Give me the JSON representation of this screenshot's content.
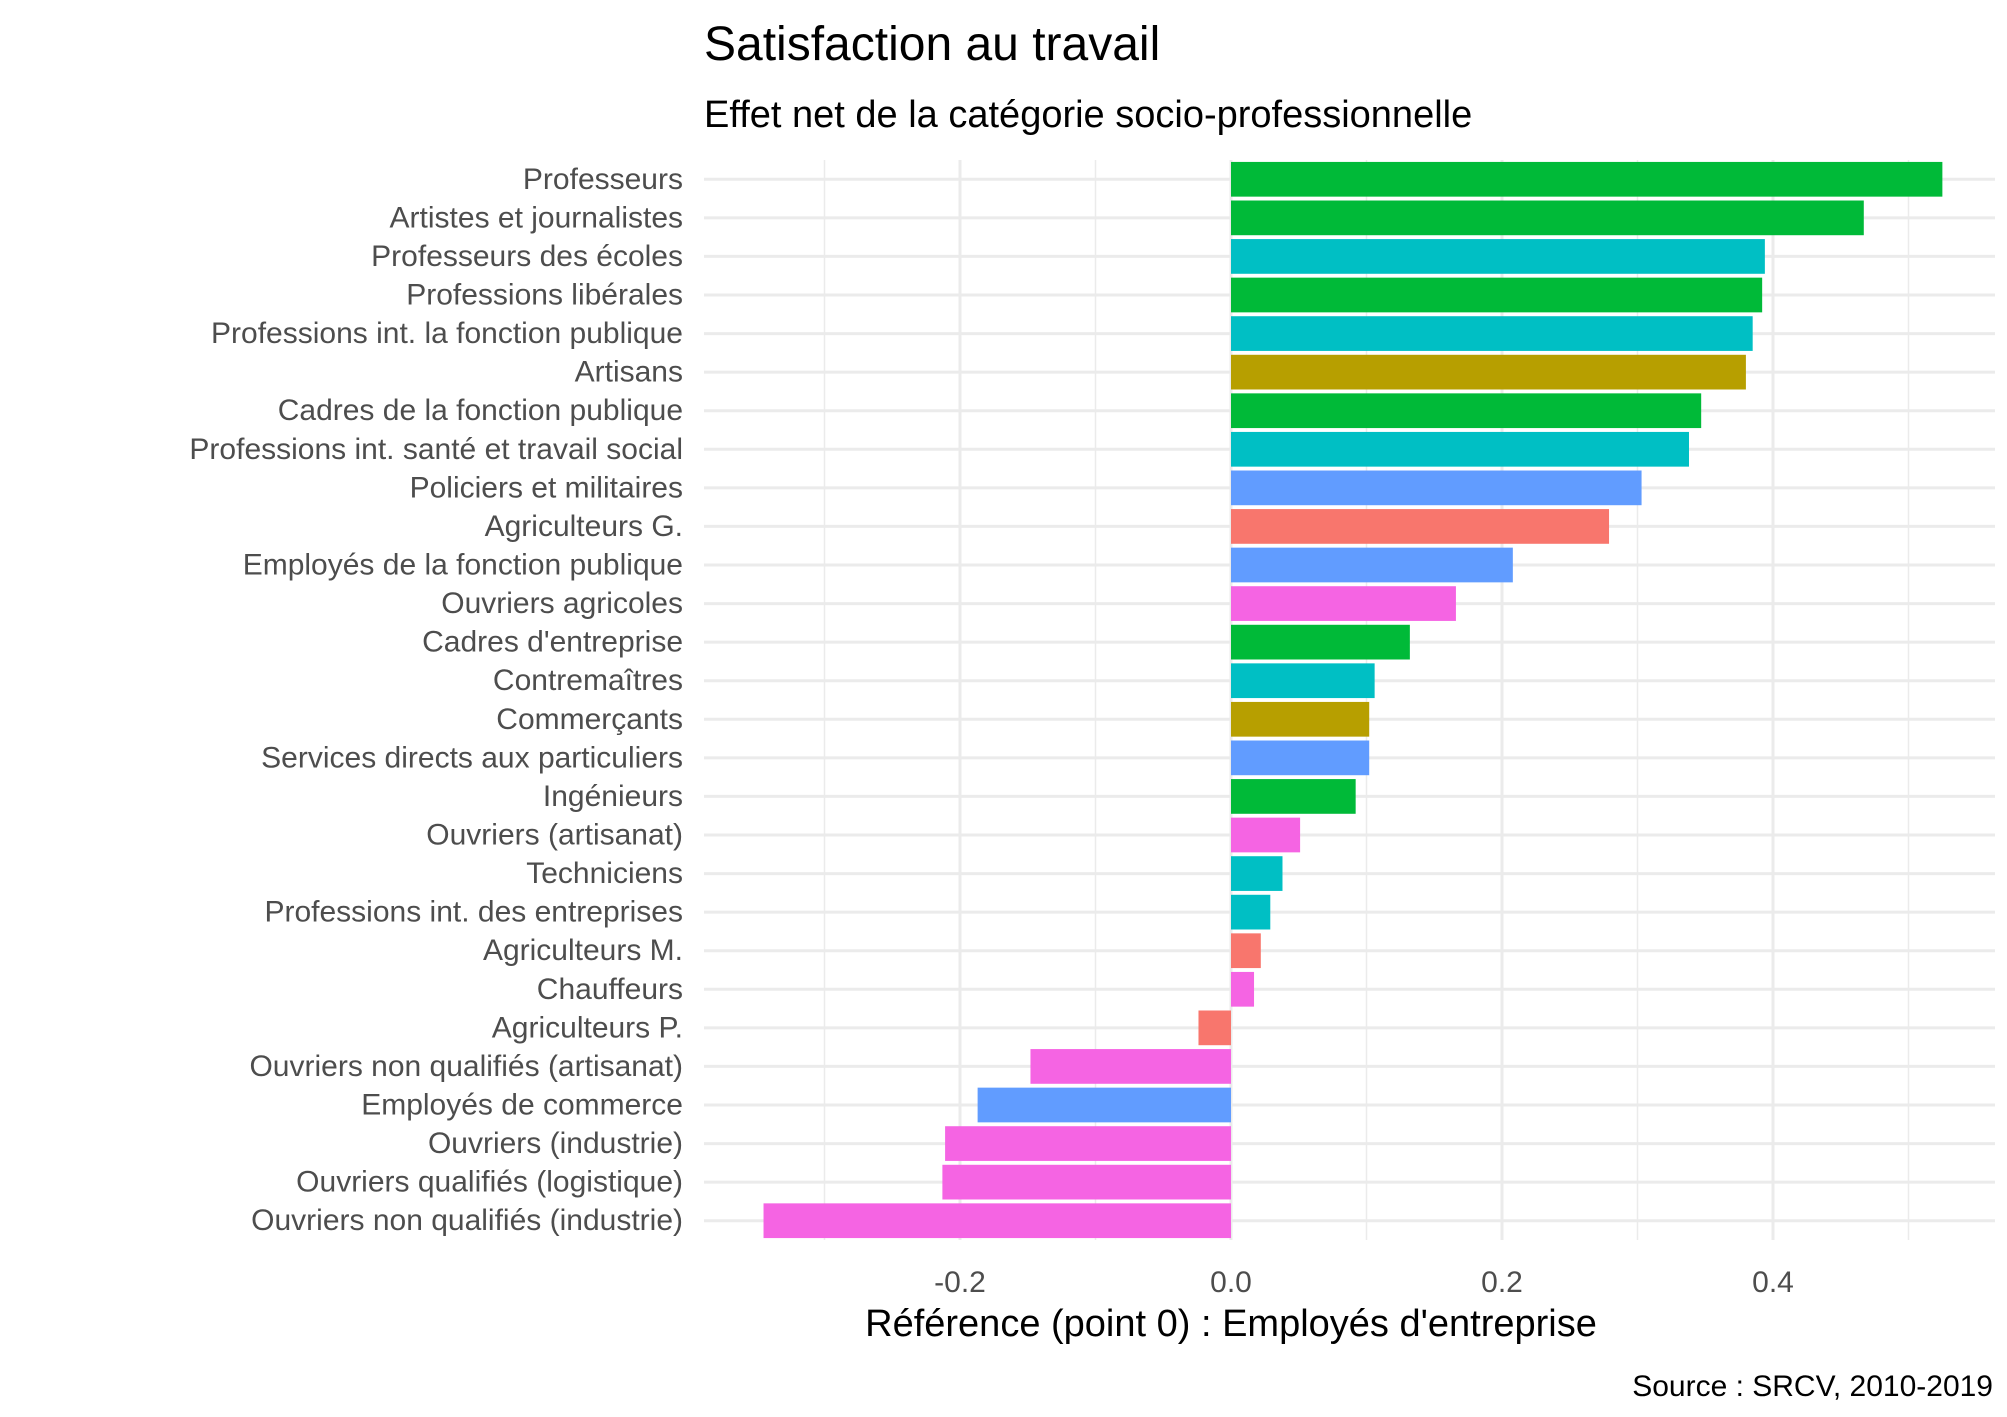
{
  "chart_data": {
    "type": "bar",
    "orientation": "horizontal",
    "title": "Satisfaction au travail",
    "subtitle": "Effet net de la catégorie socio-professionnelle",
    "xlabel": "Référence (point 0) : Employés d'entreprise",
    "ylabel": "",
    "caption": "Source : SRCV, 2010-2019",
    "xlim": [
      -0.38,
      0.555
    ],
    "xticks": [
      -0.2,
      0.0,
      0.2,
      0.4
    ],
    "xtick_labels": [
      "-0.2",
      "0.0",
      "0.2",
      "0.4"
    ],
    "grid": true,
    "legend": "none",
    "categories": [
      "Professeurs",
      "Artistes et journalistes",
      "Professeurs des écoles",
      "Professions libérales",
      "Professions int. la fonction publique",
      "Artisans",
      "Cadres de la fonction publique",
      "Professions int. santé et travail social",
      "Policiers et militaires",
      "Agriculteurs G.",
      "Employés de la fonction publique",
      "Ouvriers agricoles",
      "Cadres d'entreprise",
      "Contremaîtres",
      "Commerçants",
      "Services directs aux particuliers",
      "Ingénieurs",
      "Ouvriers (artisanat)",
      "Techniciens",
      "Professions int. des entreprises",
      "Agriculteurs M.",
      "Chauffeurs",
      "Agriculteurs P.",
      "Ouvriers non qualifiés (artisanat)",
      "Employés de commerce",
      "Ouvriers (industrie)",
      "Ouvriers qualifiés (logistique)",
      "Ouvriers non qualifiés (industrie)"
    ],
    "values": [
      0.525,
      0.467,
      0.394,
      0.392,
      0.385,
      0.38,
      0.347,
      0.338,
      0.303,
      0.279,
      0.208,
      0.166,
      0.132,
      0.106,
      0.102,
      0.102,
      0.092,
      0.051,
      0.038,
      0.029,
      0.022,
      0.017,
      -0.024,
      -0.148,
      -0.187,
      -0.211,
      -0.213,
      -0.345
    ],
    "colors": [
      "#00BA38",
      "#00BA38",
      "#00BFC4",
      "#00BA38",
      "#00BFC4",
      "#B79F00",
      "#00BA38",
      "#00BFC4",
      "#619CFF",
      "#F8766D",
      "#619CFF",
      "#F564E3",
      "#00BA38",
      "#00BFC4",
      "#B79F00",
      "#619CFF",
      "#00BA38",
      "#F564E3",
      "#00BFC4",
      "#00BFC4",
      "#F8766D",
      "#F564E3",
      "#F8766D",
      "#F564E3",
      "#619CFF",
      "#F564E3",
      "#F564E3",
      "#F564E3"
    ]
  }
}
